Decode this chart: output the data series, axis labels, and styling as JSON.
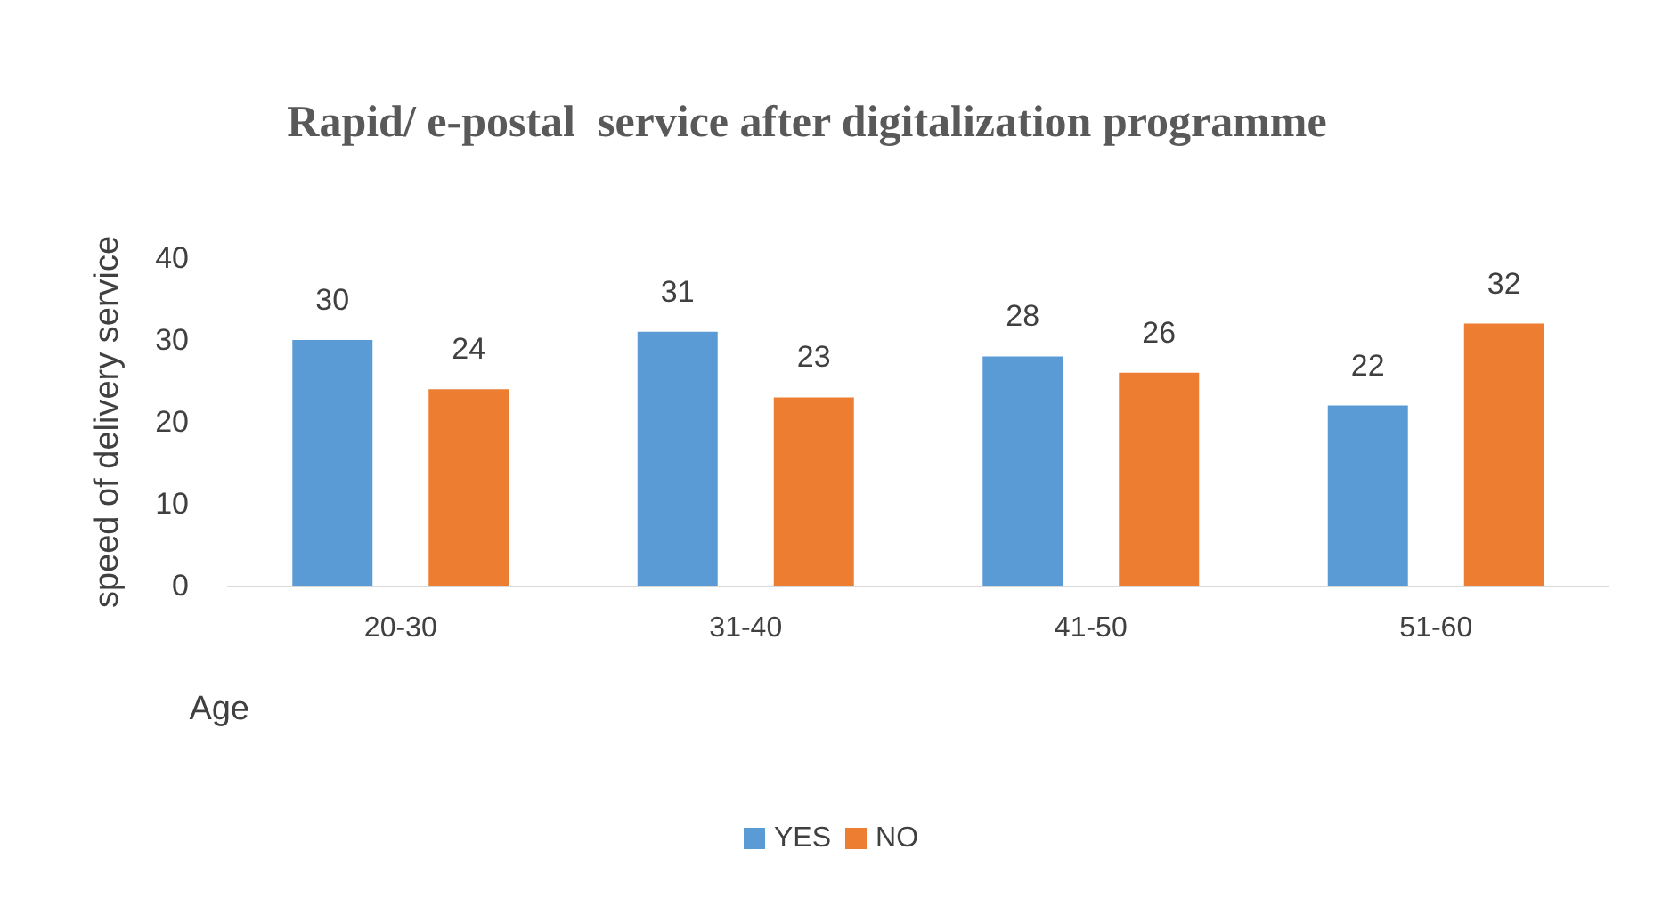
{
  "chart_data": {
    "type": "bar",
    "title": "Rapid/ e-postal  service after digitalization programme",
    "xlabel": "Age",
    "ylabel": "speed of delivery service",
    "categories": [
      "20-30",
      "31-40",
      "41-50",
      "51-60"
    ],
    "series": [
      {
        "name": "YES",
        "color": "#5b9bd5",
        "values": [
          30,
          31,
          28,
          22
        ]
      },
      {
        "name": "NO",
        "color": "#ed7d31",
        "values": [
          24,
          23,
          26,
          32
        ]
      }
    ],
    "ylim": [
      0,
      40
    ],
    "yticks": [
      0,
      10,
      20,
      30,
      40
    ],
    "grid": false,
    "legend": "bottom",
    "data_labels": true
  }
}
